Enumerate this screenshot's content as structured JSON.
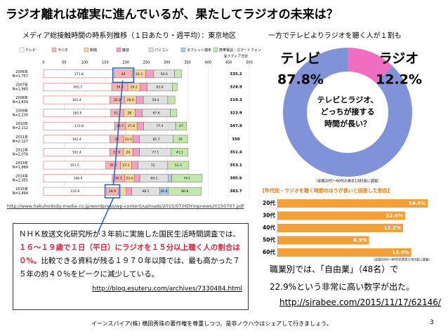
{
  "title": "ラジオ離れは確実に進んでいるが、果たしてラジオの未来は？",
  "left_subtitle": "メディア総接触時間の時系列推移（１日あたり・週平均）：東京地区",
  "right_subtitle": "一方でテレビよりラジオを聴く人が１割も",
  "chart_data": [
    {
      "type": "stacked-bar-horizontal",
      "total_header": "全メディア合計",
      "categories": [
        "2006年",
        "2007年",
        "2008年",
        "2009年",
        "2010年",
        "2011年",
        "2012年",
        "2013年",
        "2014年",
        "2015年"
      ],
      "n": [
        "N=1,757",
        "N=1,945",
        "N=1,834",
        "N=2,230",
        "N=2,112",
        "N=2,127",
        "N=2,076",
        "N=1,889",
        "N=2,055",
        "N=1,894"
      ],
      "totals": [
        335.2,
        324.9,
        319.3,
        323.9,
        347.9,
        350.0,
        351.4,
        353.1,
        385.6,
        383.7
      ],
      "xlim": [
        0,
        500
      ],
      "xticks": [
        0,
        50,
        100,
        150,
        200,
        250,
        300,
        350,
        400,
        450,
        500
      ],
      "series": [
        {
          "name": "テレビ",
          "color": "#ffffff",
          "values": [
            171.8,
            165.7,
            161.4,
            163.5,
            172.8,
            161.4,
            161.4,
            151.5,
            166.9,
            152.9
          ]
        },
        {
          "name": "ラジオ",
          "color": "#f7b3b3",
          "values": [
            44.0,
            39.3,
            35.2,
            31.1,
            26.7,
            33.0,
            31.9,
            35.2,
            30.3,
            28.9
          ]
        },
        {
          "name": "新聞",
          "color": "#f9d59e",
          "values": [
            32.3,
            29.2,
            28.9,
            28.0,
            27.8,
            23.3,
            24.0,
            27.1,
            23.4,
            19.3
          ]
        },
        {
          "name": "雑誌",
          "color": "#f59ec4",
          "values": [
            19.6,
            17.5,
            17.1,
            17.8,
            16.2,
            15.6,
            15.9,
            16.0,
            13.5,
            13.1
          ]
        },
        {
          "name": "パソコン",
          "color": "#e0e0e0",
          "values": [
            50.6,
            61.8,
            59.4,
            67.6,
            77.4,
            81.7,
            77.1,
            72.0,
            69.1,
            68.1
          ]
        },
        {
          "name": "タブレット端末",
          "color": "#a9cdea",
          "values": [
            0,
            0,
            0,
            0,
            0,
            0,
            0,
            0,
            8.3,
            20.6
          ]
        },
        {
          "name": "携帯電話・スマートフォン",
          "color": "#c3e8ae",
          "values": [
            16.9,
            11.4,
            17.3,
            15.9,
            27.0,
            35.0,
            41.1,
            51.3,
            74.1,
            80.8
          ]
        }
      ]
    },
    {
      "type": "donut",
      "categories": [
        "ラジオ",
        "テレビ"
      ],
      "values": [
        12.2,
        87.8
      ],
      "value_labels": [
        "12.2%",
        "87.8%"
      ],
      "colors": [
        "#f06ec2",
        "#8193d8"
      ],
      "center_text": [
        "テレビとラジオ、",
        "どっちが接する",
        "時間が長い？"
      ],
      "note": "（全国20代〜60代の男女1383名に調査）"
    },
    {
      "type": "bar-horizontal",
      "title": "【年代別・ラジオを聴く時間のほうが長いと回答した割合】",
      "categories": [
        "20代",
        "30代",
        "40代",
        "50代",
        "60代"
      ],
      "values": [
        14.6,
        12.4,
        12.2,
        8.9,
        13.0
      ],
      "value_labels": [
        "14.6%",
        "12.4%",
        "12.2%",
        "8.9%",
        "13.0%"
      ],
      "xlim": [
        0,
        15
      ],
      "color": "#f4a038",
      "note": "（全国20代〜60代の男女1383名に調査）"
    }
  ],
  "chart_source": "http://www.hakuhodody-media.co.jp/wordpress/wp-content/uploads/2015/07/HDYmpnews20150707.pdf",
  "text_box": {
    "parts": [
      "ＮＨＫ放送文化研究所が３年前に実施した国民生活時間調査では、",
      "１６～１９歳で１日（平日）にラジオを１５分以上聴く人の割合は０%。",
      "比較できる資料が残る１９７０年以降では、最も高かった７５年の約４０％をピークに減少している。"
    ],
    "link": "http://blog.esuteru.com/archives/7330484.html"
  },
  "right_text": [
    "職業別では、「自由業」（48名）で",
    "22.9%という非常に高い数字が出た。"
  ],
  "right_link": "http://sirabee.com/2015/11/17/62146/",
  "footer": "イーンスパイア(株) 横田秀珠の著作権を尊重しつつ、是非ノウハウはシェアして行きましょう。",
  "page_number": "3"
}
